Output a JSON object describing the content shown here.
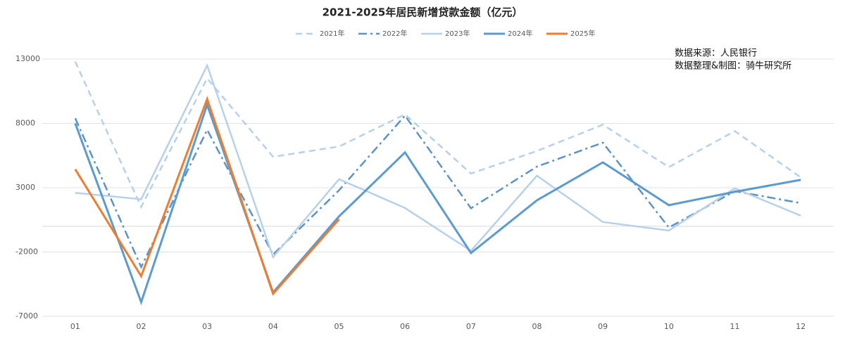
{
  "chart_data": {
    "type": "line",
    "title": "2021-2025年居民新增贷款金额（亿元）",
    "annotations": [
      "数据来源：人民银行",
      "数据整理&制图：骑牛研究所"
    ],
    "categories": [
      "01",
      "02",
      "03",
      "04",
      "05",
      "06",
      "07",
      "08",
      "09",
      "10",
      "11",
      "12"
    ],
    "series": [
      {
        "name": "2021年",
        "color": "#b7d1ea",
        "dash": "dashed",
        "width": 2.5,
        "values": [
          12800,
          1500,
          11500,
          5400,
          6200,
          8700,
          4100,
          5850,
          7900,
          4600,
          7400,
          3800
        ]
      },
      {
        "name": "2022年",
        "color": "#5b93c7",
        "dash": "dashdot",
        "width": 2.5,
        "values": [
          8400,
          -3170,
          7500,
          -2200,
          2800,
          8600,
          1400,
          4640,
          6500,
          -100,
          2730,
          1800
        ]
      },
      {
        "name": "2023年",
        "color": "#b7d1ea",
        "dash": "solid",
        "width": 2.5,
        "values": [
          2600,
          2100,
          12500,
          -2400,
          3660,
          1420,
          -1910,
          3930,
          330,
          -330,
          2950,
          820
        ]
      },
      {
        "name": "2024年",
        "color": "#5b9bd0",
        "dash": "solid",
        "width": 3,
        "values": [
          8000,
          -5900,
          9450,
          -5140,
          770,
          5740,
          -2080,
          2020,
          4970,
          1640,
          2680,
          3610
        ]
      },
      {
        "name": "2025年",
        "color": "#ed7d31",
        "dash": "solid",
        "width": 3,
        "values": [
          4430,
          -3880,
          9890,
          -5250,
          550,
          null,
          null,
          null,
          null,
          null,
          null,
          null
        ]
      }
    ],
    "ylim": [
      -7000,
      13000
    ],
    "yticks": [
      -7000,
      -2000,
      3000,
      8000,
      13000
    ],
    "grid": true,
    "legend": "top"
  }
}
